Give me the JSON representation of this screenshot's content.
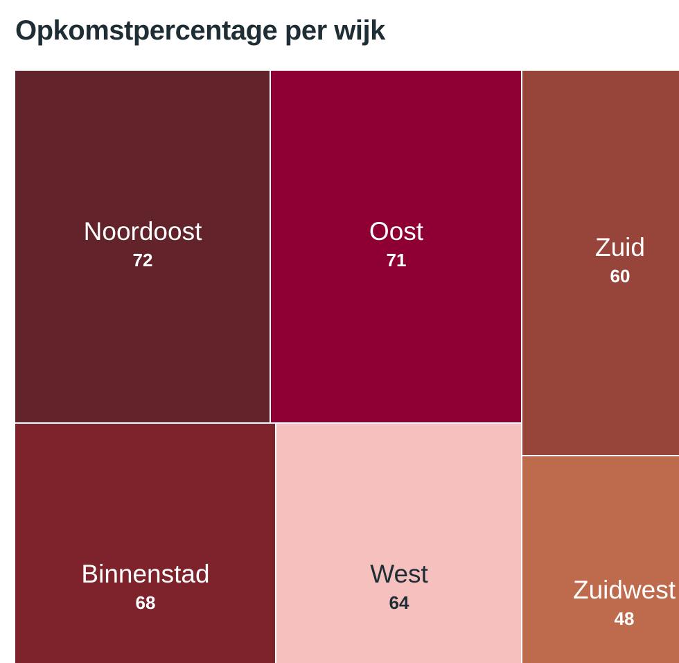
{
  "title": "Opkomstpercentage per wijk",
  "chart_data": {
    "type": "treemap",
    "title": "Opkomstpercentage per wijk",
    "items": [
      {
        "name": "Noordoost",
        "value": 72,
        "color": "#62232a",
        "text_color": "#ffffff"
      },
      {
        "name": "Oost",
        "value": 71,
        "color": "#8e0033",
        "text_color": "#ffffff"
      },
      {
        "name": "Zuid",
        "value": 60,
        "color": "#97443a",
        "text_color": "#ffffff"
      },
      {
        "name": "Binnenstad",
        "value": 68,
        "color": "#7e232b",
        "text_color": "#ffffff"
      },
      {
        "name": "West",
        "value": 64,
        "color": "#f6c0bf",
        "text_color": "#1f2d35"
      },
      {
        "name": "Zuidwest",
        "value": 48,
        "color": "#bd6b4c",
        "text_color": "#ffffff"
      }
    ]
  }
}
